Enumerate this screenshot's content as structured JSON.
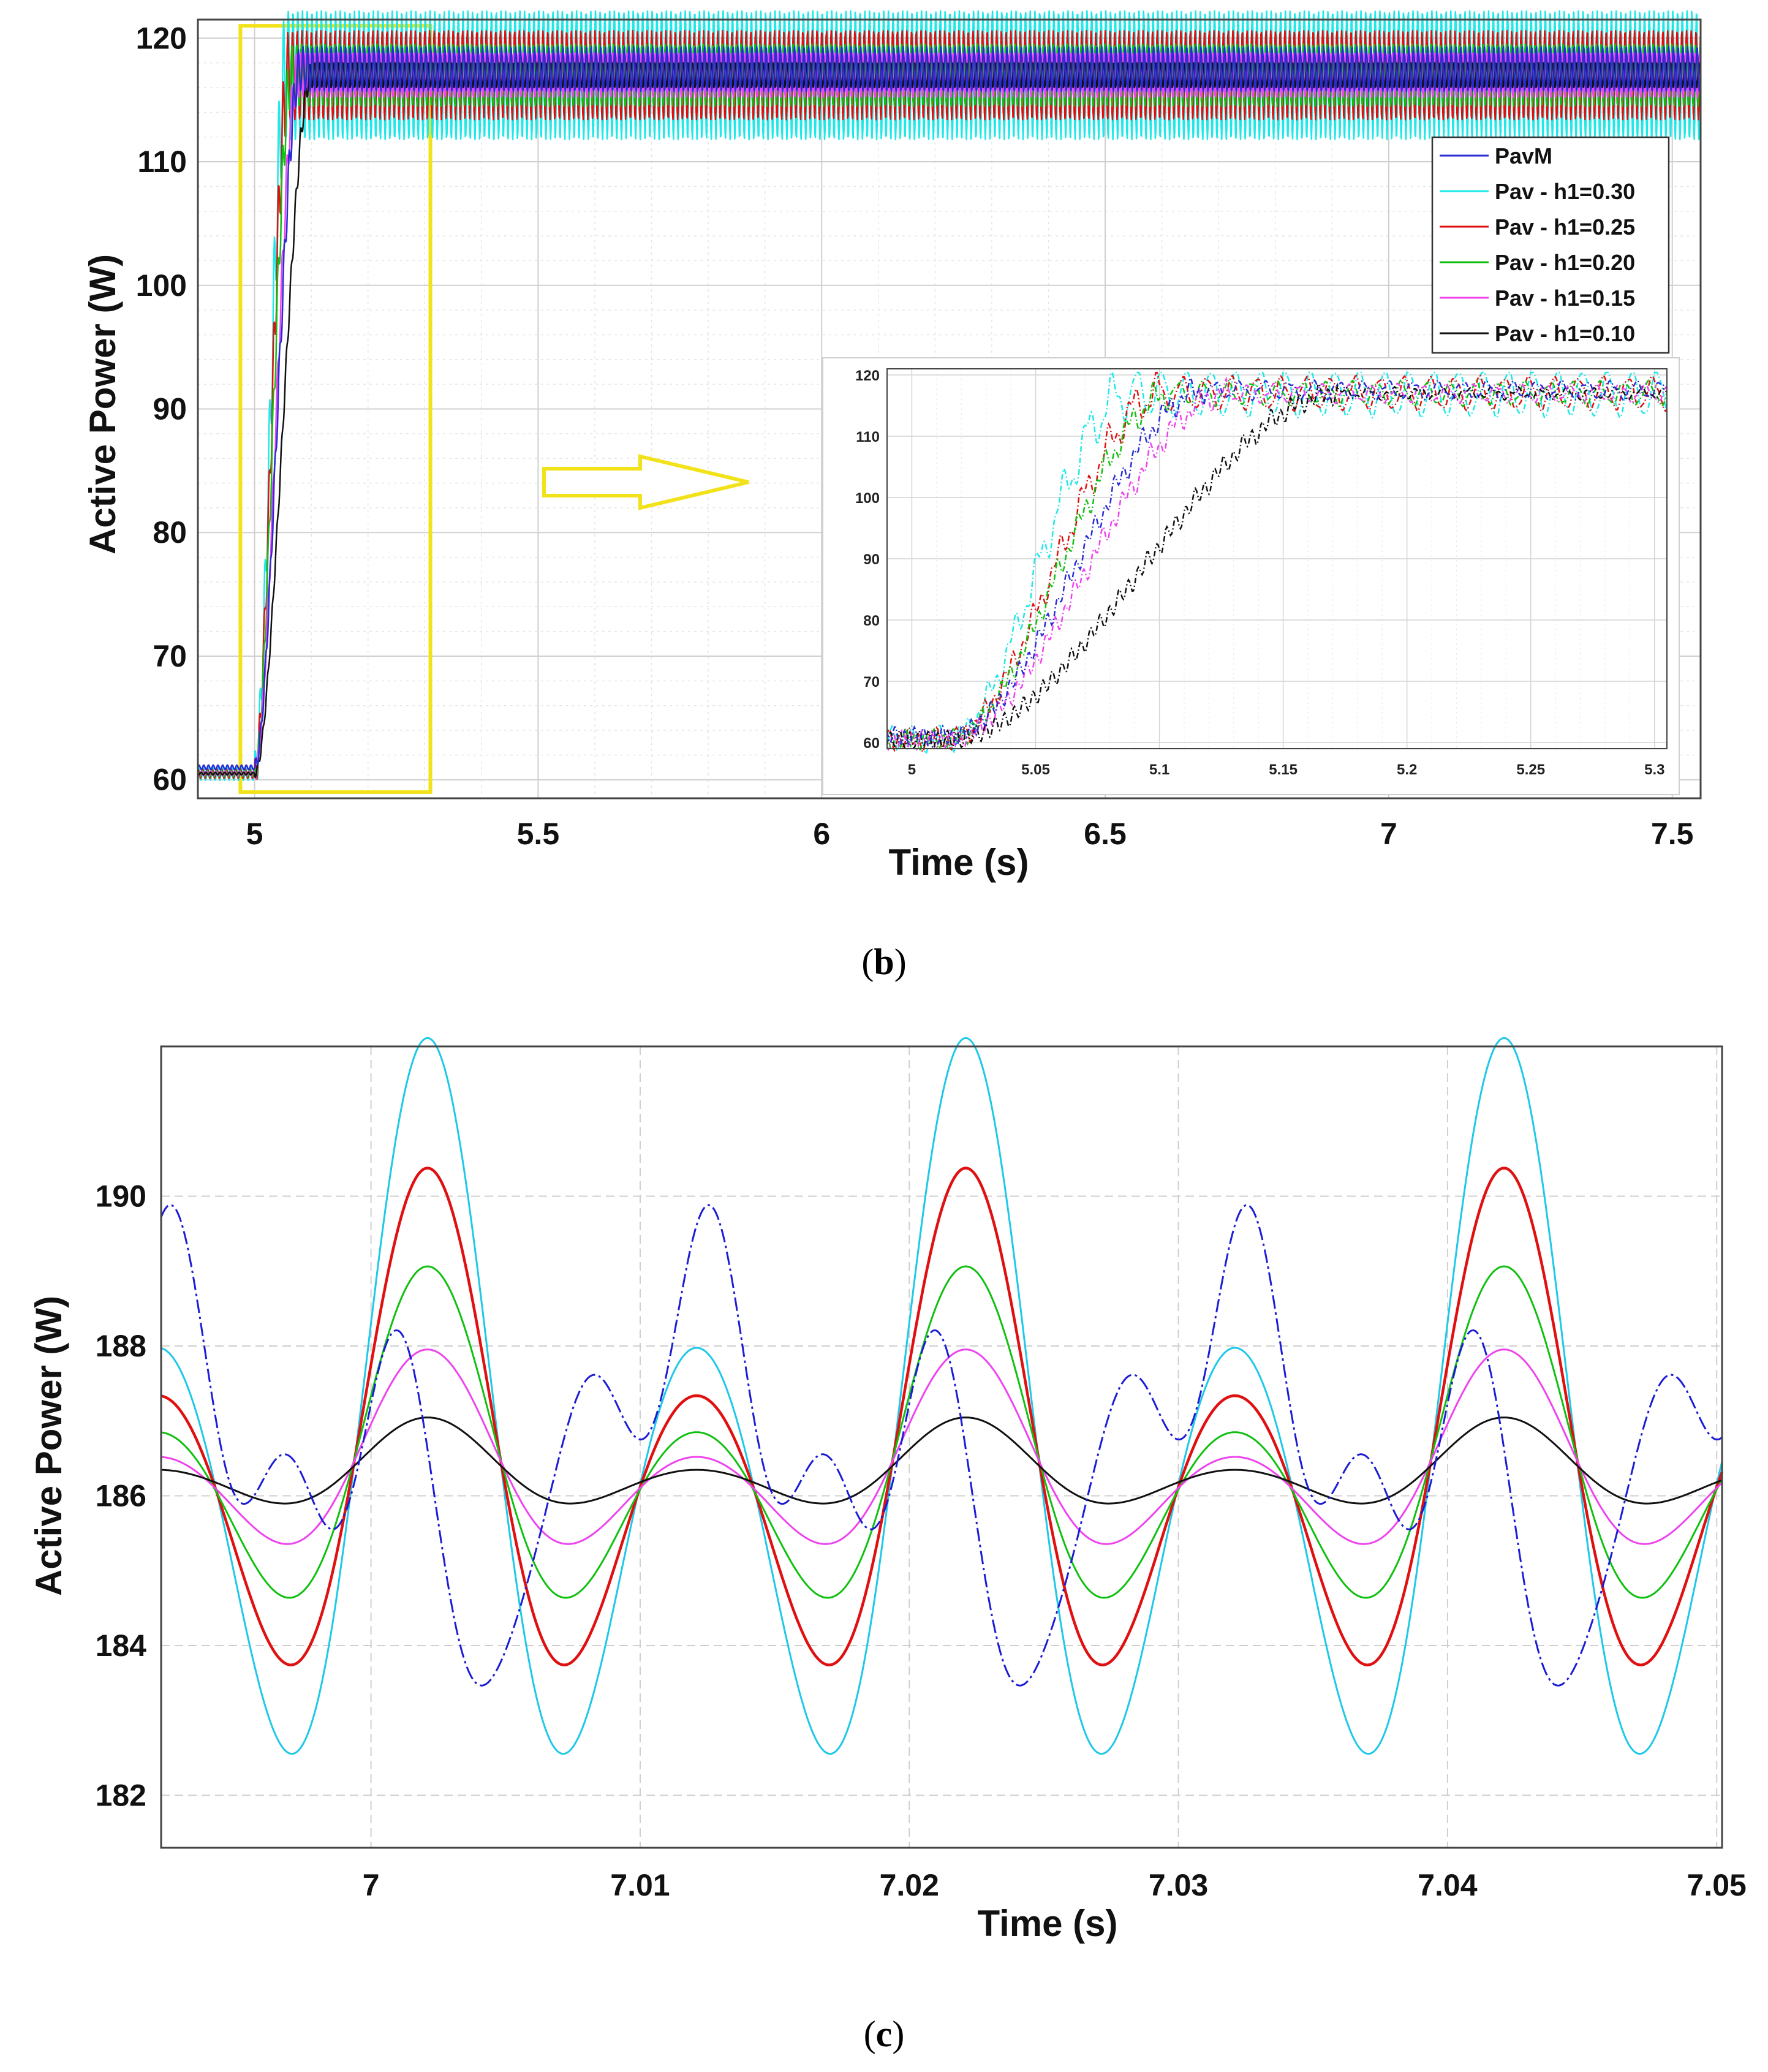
{
  "chart_data": [
    {
      "id": "b",
      "type": "line",
      "caption_letter": "b",
      "xlabel": "Time (s)",
      "ylabel": "Active Power (W)",
      "xlim": [
        4.9,
        7.55
      ],
      "ylim": [
        58.5,
        121.5
      ],
      "xticks": [
        5,
        5.5,
        6,
        6.5,
        7,
        7.5
      ],
      "xtick_labels": [
        "5",
        "5.5",
        "6",
        "6.5",
        "7",
        "7.5"
      ],
      "yticks": [
        60,
        70,
        80,
        90,
        100,
        110,
        120
      ],
      "ytick_labels": [
        "60",
        "70",
        "80",
        "90",
        "100",
        "110",
        "120"
      ],
      "grid": true,
      "legend_position": "right, upper-middle",
      "series": [
        {
          "name": "PavM",
          "color": "#2b2bd6",
          "start": 61,
          "end": 117.5,
          "step_time": 5.0,
          "rise": 0.08,
          "ripple": 1.8
        },
        {
          "name": "Pav - h1=0.30",
          "color": "#1ee8e8",
          "start": 60.5,
          "end": 117,
          "step_time": 5.0,
          "rise": 0.055,
          "ripple": 5.2
        },
        {
          "name": "Pav - h1=0.25",
          "color": "#e01010",
          "start": 60.5,
          "end": 117,
          "step_time": 5.0,
          "rise": 0.06,
          "ripple": 3.6
        },
        {
          "name": "Pav - h1=0.20",
          "color": "#10c010",
          "start": 60.5,
          "end": 117,
          "step_time": 5.0,
          "rise": 0.065,
          "ripple": 2.5
        },
        {
          "name": "Pav - h1=0.15",
          "color": "#ee44ee",
          "start": 60.5,
          "end": 117,
          "step_time": 5.0,
          "rise": 0.075,
          "ripple": 1.8
        },
        {
          "name": "Pav - h1=0.10",
          "color": "#111111",
          "start": 60.5,
          "end": 117,
          "step_time": 5.0,
          "rise": 0.1,
          "ripple": 1.0
        }
      ],
      "zoom_box": {
        "x": [
          4.975,
          5.31
        ],
        "y": [
          59,
          121
        ]
      },
      "inset": {
        "xlim": [
          4.99,
          5.305
        ],
        "ylim": [
          59,
          121
        ],
        "xticks": [
          5,
          5.05,
          5.1,
          5.15,
          5.2,
          5.25,
          5.3
        ],
        "xtick_labels": [
          "5",
          "5.05",
          "5.1",
          "5.15",
          "5.2",
          "5.25",
          "5.3"
        ],
        "yticks": [
          60,
          70,
          80,
          90,
          100,
          110,
          120
        ],
        "ytick_labels": [
          "60",
          "70",
          "80",
          "90",
          "100",
          "110",
          "120"
        ]
      }
    },
    {
      "id": "c",
      "type": "line",
      "caption_letter": "c",
      "xlabel": "Time (s)",
      "ylabel": "Active Power (W)",
      "xlim": [
        6.9922,
        7.0502
      ],
      "ylim": [
        181.3,
        192.0
      ],
      "xticks": [
        7.0,
        7.01,
        7.02,
        7.03,
        7.04,
        7.05
      ],
      "xtick_labels": [
        "7",
        "7.01",
        "7.02",
        "7.03",
        "7.04",
        "7.05"
      ],
      "yticks": [
        182,
        184,
        186,
        188,
        190
      ],
      "ytick_labels": [
        "182",
        "184",
        "186",
        "188",
        "190"
      ],
      "grid": true,
      "series": [
        {
          "name": "Pav - h1=0.30",
          "color": "#1ec8e8",
          "mean": 186.3,
          "amp_major": 5.2,
          "amp_minor": 1.6,
          "period": 0.02,
          "peak_time": 7.0021
        },
        {
          "name": "Pav - h1=0.25",
          "color": "#e01010",
          "mean": 186.3,
          "amp_major": 3.55,
          "amp_minor": 1.2,
          "period": 0.02,
          "peak_time": 7.0021
        },
        {
          "name": "Pav - h1=0.20",
          "color": "#10c010",
          "mean": 186.3,
          "amp_major": 2.3,
          "amp_minor": 0.9,
          "period": 0.02,
          "peak_time": 7.0021
        },
        {
          "name": "Pav - h1=0.15",
          "color": "#ee44ee",
          "mean": 186.3,
          "amp_major": 1.3,
          "amp_minor": 0.6,
          "period": 0.02,
          "peak_time": 7.0021
        },
        {
          "name": "Pav - h1=0.10",
          "color": "#111111",
          "mean": 186.3,
          "amp_major": 0.55,
          "amp_minor": 0.3,
          "period": 0.02,
          "peak_time": 7.0021
        },
        {
          "name": "PavM",
          "color": "#1c1cd6",
          "dashed": true,
          "mean": 186.8,
          "period": 0.02
        }
      ]
    }
  ]
}
